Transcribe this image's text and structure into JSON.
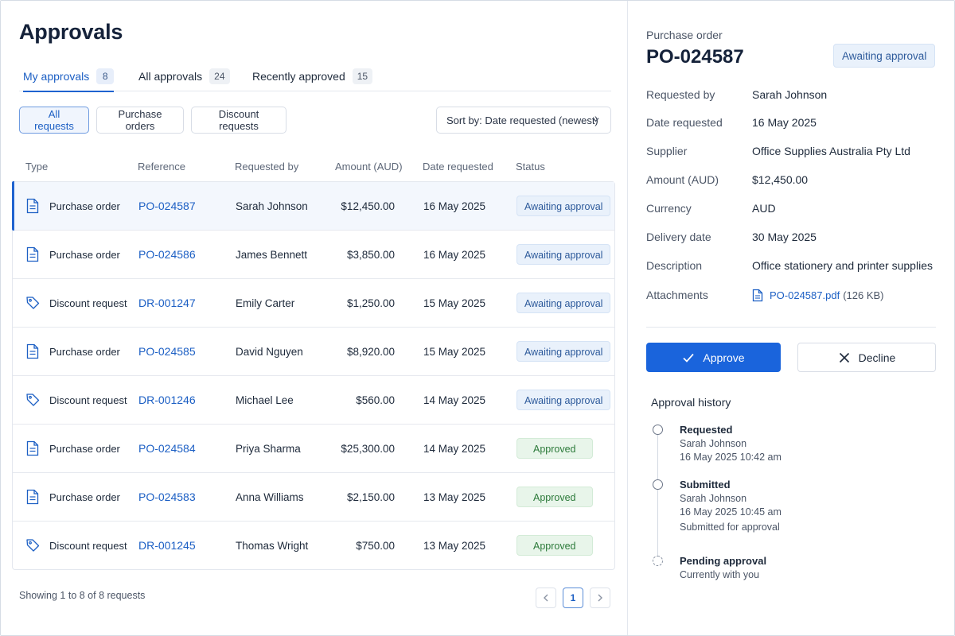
{
  "page": {
    "title": "Approvals"
  },
  "tabs": [
    {
      "label": "My approvals",
      "count": "8",
      "active": true
    },
    {
      "label": "All approvals",
      "count": "24",
      "active": false
    },
    {
      "label": "Recently approved",
      "count": "15",
      "active": false
    }
  ],
  "filters": [
    {
      "label": "All requests",
      "active": true
    },
    {
      "label": "Purchase orders",
      "active": false
    },
    {
      "label": "Discount requests",
      "active": false
    }
  ],
  "sort": {
    "label": "Sort by: Date requested (newest)"
  },
  "table": {
    "headers": [
      "Type",
      "Reference",
      "Requested by",
      "Amount (AUD)",
      "Date requested",
      "Status"
    ],
    "rows": [
      {
        "type": "Purchase order",
        "icon": "document-icon",
        "ref": "PO-024587",
        "requested_by": "Sarah Johnson",
        "amount": "$12,450.00",
        "date": "16 May 2025",
        "status": "Awaiting approval",
        "status_kind": "await",
        "selected": true
      },
      {
        "type": "Purchase order",
        "icon": "document-icon",
        "ref": "PO-024586",
        "requested_by": "James Bennett",
        "amount": "$3,850.00",
        "date": "16 May 2025",
        "status": "Awaiting approval",
        "status_kind": "await"
      },
      {
        "type": "Discount request",
        "icon": "tag-icon",
        "ref": "DR-001247",
        "requested_by": "Emily Carter",
        "amount": "$1,250.00",
        "date": "15 May 2025",
        "status": "Awaiting approval",
        "status_kind": "await"
      },
      {
        "type": "Purchase order",
        "icon": "document-icon",
        "ref": "PO-024585",
        "requested_by": "David Nguyen",
        "amount": "$8,920.00",
        "date": "15 May 2025",
        "status": "Awaiting approval",
        "status_kind": "await"
      },
      {
        "type": "Discount request",
        "icon": "tag-icon",
        "ref": "DR-001246",
        "requested_by": "Michael Lee",
        "amount": "$560.00",
        "date": "14 May 2025",
        "status": "Awaiting approval",
        "status_kind": "await"
      },
      {
        "type": "Purchase order",
        "icon": "document-icon",
        "ref": "PO-024584",
        "requested_by": "Priya Sharma",
        "amount": "$25,300.00",
        "date": "14 May 2025",
        "status": "Approved",
        "status_kind": "approved"
      },
      {
        "type": "Purchase order",
        "icon": "document-icon",
        "ref": "PO-024583",
        "requested_by": "Anna Williams",
        "amount": "$2,150.00",
        "date": "13 May 2025",
        "status": "Approved",
        "status_kind": "approved"
      },
      {
        "type": "Discount request",
        "icon": "tag-icon",
        "ref": "DR-001245",
        "requested_by": "Thomas Wright",
        "amount": "$750.00",
        "date": "13 May 2025",
        "status": "Approved",
        "status_kind": "approved"
      }
    ]
  },
  "footer": {
    "showing": "Showing 1 to 8 of 8 requests",
    "page": "1",
    "prev_icon": "chevron-left-icon",
    "next_icon": "chevron-right-icon"
  },
  "detail": {
    "kicker": "Purchase order",
    "title": "PO-024587",
    "status": "Awaiting approval",
    "fields": [
      {
        "label": "Requested by",
        "value": "Sarah Johnson"
      },
      {
        "label": "Date requested",
        "value": "16 May 2025"
      },
      {
        "label": "Supplier",
        "value": "Office Supplies Australia Pty Ltd"
      },
      {
        "label": "Amount (AUD)",
        "value": "$12,450.00"
      },
      {
        "label": "Currency",
        "value": "AUD"
      },
      {
        "label": "Delivery date",
        "value": "30 May 2025"
      },
      {
        "label": "Description",
        "value": "Office stationery and printer supplies"
      }
    ],
    "attachments": {
      "label": "Attachments",
      "file": "PO-024587.pdf",
      "size": "(126 KB)"
    },
    "approve_label": "Approve",
    "decline_label": "Decline",
    "history_title": "Approval history",
    "history": [
      {
        "title": "Requested",
        "lines": [
          "Sarah Johnson",
          "16 May 2025 10:42 am"
        ]
      },
      {
        "title": "Submitted",
        "lines": [
          "Sarah Johnson",
          "16 May 2025 10:45 am",
          "Submitted for approval"
        ]
      },
      {
        "title": "Pending approval",
        "lines": [
          "Currently with you"
        ],
        "pending": true
      }
    ]
  },
  "colors": {
    "accent": "#1a64dc",
    "await_bg": "#e9f1fb",
    "approved_bg": "#e8f5ea",
    "approved_text": "#2c7a3a"
  }
}
